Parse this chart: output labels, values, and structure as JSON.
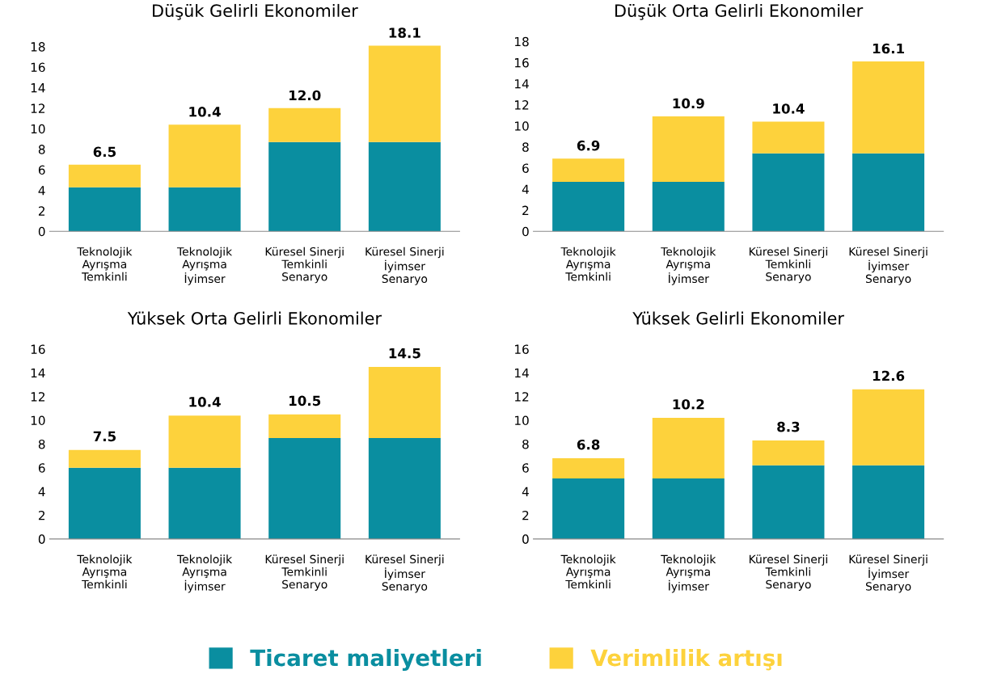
{
  "chart_data": [
    {
      "type": "bar",
      "stacked": true,
      "title": "Düşük Gelirli Ekonomiler",
      "categories": [
        "Teknolojik\nAyrışma\nTemkinli",
        "Teknolojik\nAyrışma\nİyimser",
        "Küresel Sinerji\nTemkinli\nSenaryo",
        "Küresel Sinerji\nİyimser\nSenaryo"
      ],
      "ylim": [
        0,
        18.5
      ],
      "yticks": [
        0,
        2,
        4,
        6,
        8,
        10,
        12,
        14,
        16,
        18
      ],
      "totals": [
        "6.5",
        "10.4",
        "12.0",
        "18.1"
      ],
      "legend": "bottom",
      "series": [
        {
          "name": "Ticaret maliyetleri",
          "color": "#0a8ea0",
          "values": [
            4.3,
            4.3,
            8.7,
            8.7
          ]
        },
        {
          "name": "Verimlilik artışı",
          "color": "#fdd23c",
          "values": [
            2.2,
            6.1,
            3.3,
            9.4
          ]
        }
      ]
    },
    {
      "type": "bar",
      "stacked": true,
      "title": "Düşük Orta Gelirli Ekonomiler",
      "categories": [
        "Teknolojik\nAyrışma\nTemkinli",
        "Teknolojik\nAyrışma\nİyimser",
        "Küresel Sinerji\nTemkinli\nSenaryo",
        "Küresel Sinerji\nİyimser\nSenaryo"
      ],
      "ylim": [
        0,
        18
      ],
      "yticks": [
        0,
        2,
        4,
        6,
        8,
        10,
        12,
        14,
        16,
        18
      ],
      "totals": [
        "6.9",
        "10.9",
        "10.4",
        "16.1"
      ],
      "series": [
        {
          "color": "#0a8ea0",
          "values": [
            4.7,
            4.7,
            7.4,
            7.4
          ]
        },
        {
          "color": "#fdd23c",
          "values": [
            2.2,
            6.2,
            3.0,
            8.7
          ]
        }
      ]
    },
    {
      "type": "bar",
      "stacked": true,
      "title": "Yüksek Orta Gelirli Ekonomiler",
      "categories": [
        "Teknolojik\nAyrışma\nTemkinli",
        "Teknolojik\nAyrışma\nİyimser",
        "Küresel Sinerji\nTemkinli\nSenaryo",
        "Küresel Sinerji\nİyimser\nSenaryo"
      ],
      "ylim": [
        0,
        16
      ],
      "yticks": [
        0,
        2,
        4,
        6,
        8,
        10,
        12,
        14,
        16
      ],
      "totals": [
        "7.5",
        "10.4",
        "10.5",
        "14.5"
      ],
      "series": [
        {
          "color": "#0a8ea0",
          "values": [
            6.0,
            6.0,
            8.5,
            8.5
          ]
        },
        {
          "color": "#fdd23c",
          "values": [
            1.5,
            4.4,
            2.0,
            6.0
          ]
        }
      ]
    },
    {
      "type": "bar",
      "stacked": true,
      "title": "Yüksek Gelirli Ekonomiler",
      "categories": [
        "Teknolojik\nAyrışma\nTemkinli",
        "Teknolojik\nAyrışma\nİyimser",
        "Küresel Sinerji\nTemkinli\nSenaryo",
        "Küresel Sinerji\nİyimser\nSenaryo"
      ],
      "ylim": [
        0,
        16
      ],
      "yticks": [
        0,
        2,
        4,
        6,
        8,
        10,
        12,
        14,
        16
      ],
      "totals": [
        "6.8",
        "10.2",
        "8.3",
        "12.6"
      ],
      "series": [
        {
          "color": "#0a8ea0",
          "values": [
            5.1,
            5.1,
            6.2,
            6.2
          ]
        },
        {
          "color": "#fdd23c",
          "values": [
            1.7,
            5.1,
            2.1,
            6.4
          ]
        }
      ]
    }
  ]
}
